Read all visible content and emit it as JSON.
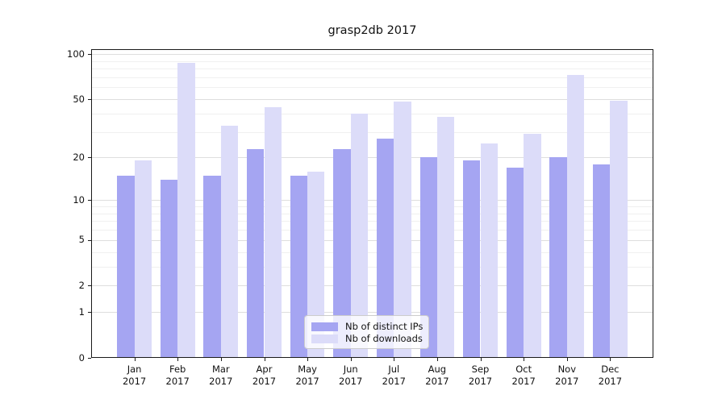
{
  "title": "grasp2db 2017",
  "chart_data": {
    "type": "bar",
    "title": "grasp2db 2017",
    "categories": [
      "Jan 2017",
      "Feb 2017",
      "Mar 2017",
      "Apr 2017",
      "May 2017",
      "Jun 2017",
      "Jul 2017",
      "Aug 2017",
      "Sep 2017",
      "Oct 2017",
      "Nov 2017",
      "Dec 2017"
    ],
    "x_months": [
      "Jan",
      "Feb",
      "Mar",
      "Apr",
      "May",
      "Jun",
      "Jul",
      "Aug",
      "Sep",
      "Oct",
      "Nov",
      "Dec"
    ],
    "x_year": "2017",
    "series": [
      {
        "name": "Nb of distinct IPs",
        "color": "#a5a5f2",
        "values": [
          15,
          14,
          15,
          23,
          15,
          23,
          27,
          20,
          19,
          17,
          20,
          18
        ]
      },
      {
        "name": "Nb of downloads",
        "color": "#dcdcf9",
        "values": [
          19,
          88,
          33,
          44,
          16,
          40,
          48,
          38,
          25,
          29,
          73,
          49
        ]
      }
    ],
    "xlabel": "",
    "ylabel": "",
    "yscale": "log1p",
    "ylim": [
      0,
      108
    ],
    "yticks": [
      100,
      50,
      20,
      10,
      5,
      2,
      1,
      0
    ],
    "grid_minor_values": [
      3,
      4,
      6,
      7,
      8,
      9,
      30,
      40,
      60,
      70,
      80,
      90
    ],
    "grid": "horizontal, light gray, major + log minors",
    "legend_position": "inside lower-center"
  },
  "legend": {
    "items": [
      {
        "label": "Nb of distinct IPs"
      },
      {
        "label": "Nb of downloads"
      }
    ]
  }
}
